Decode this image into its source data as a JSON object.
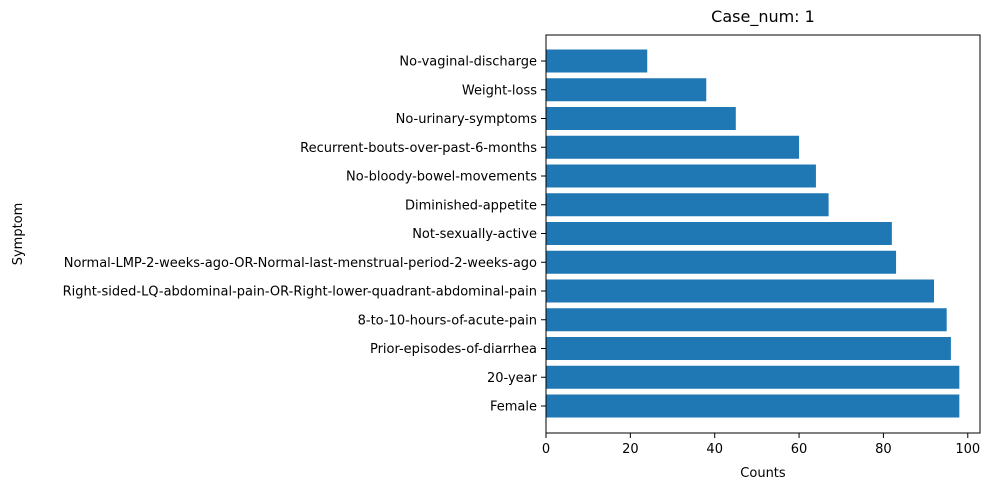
{
  "chart_data": {
    "type": "bar",
    "orientation": "horizontal",
    "title": "Case_num: 1",
    "xlabel": "Counts",
    "ylabel": "Symptom",
    "xlim": [
      0,
      102.9
    ],
    "xticks": [
      0,
      20,
      40,
      60,
      80,
      100
    ],
    "grid": false,
    "bar_color": "#1f77b4",
    "categories": [
      "Female",
      "20-year",
      "Prior-episodes-of-diarrhea",
      "8-to-10-hours-of-acute-pain",
      "Right-sided-LQ-abdominal-pain-OR-Right-lower-quadrant-abdominal-pain",
      "Normal-LMP-2-weeks-ago-OR-Normal-last-menstrual-period-2-weeks-ago",
      "Not-sexually-active",
      "Diminished-appetite",
      "No-bloody-bowel-movements",
      "Recurrent-bouts-over-past-6-months",
      "No-urinary-symptoms",
      "Weight-loss",
      "No-vaginal-discharge"
    ],
    "values": [
      98,
      98,
      96,
      95,
      92,
      83,
      82,
      67,
      64,
      60,
      45,
      38,
      24
    ]
  }
}
